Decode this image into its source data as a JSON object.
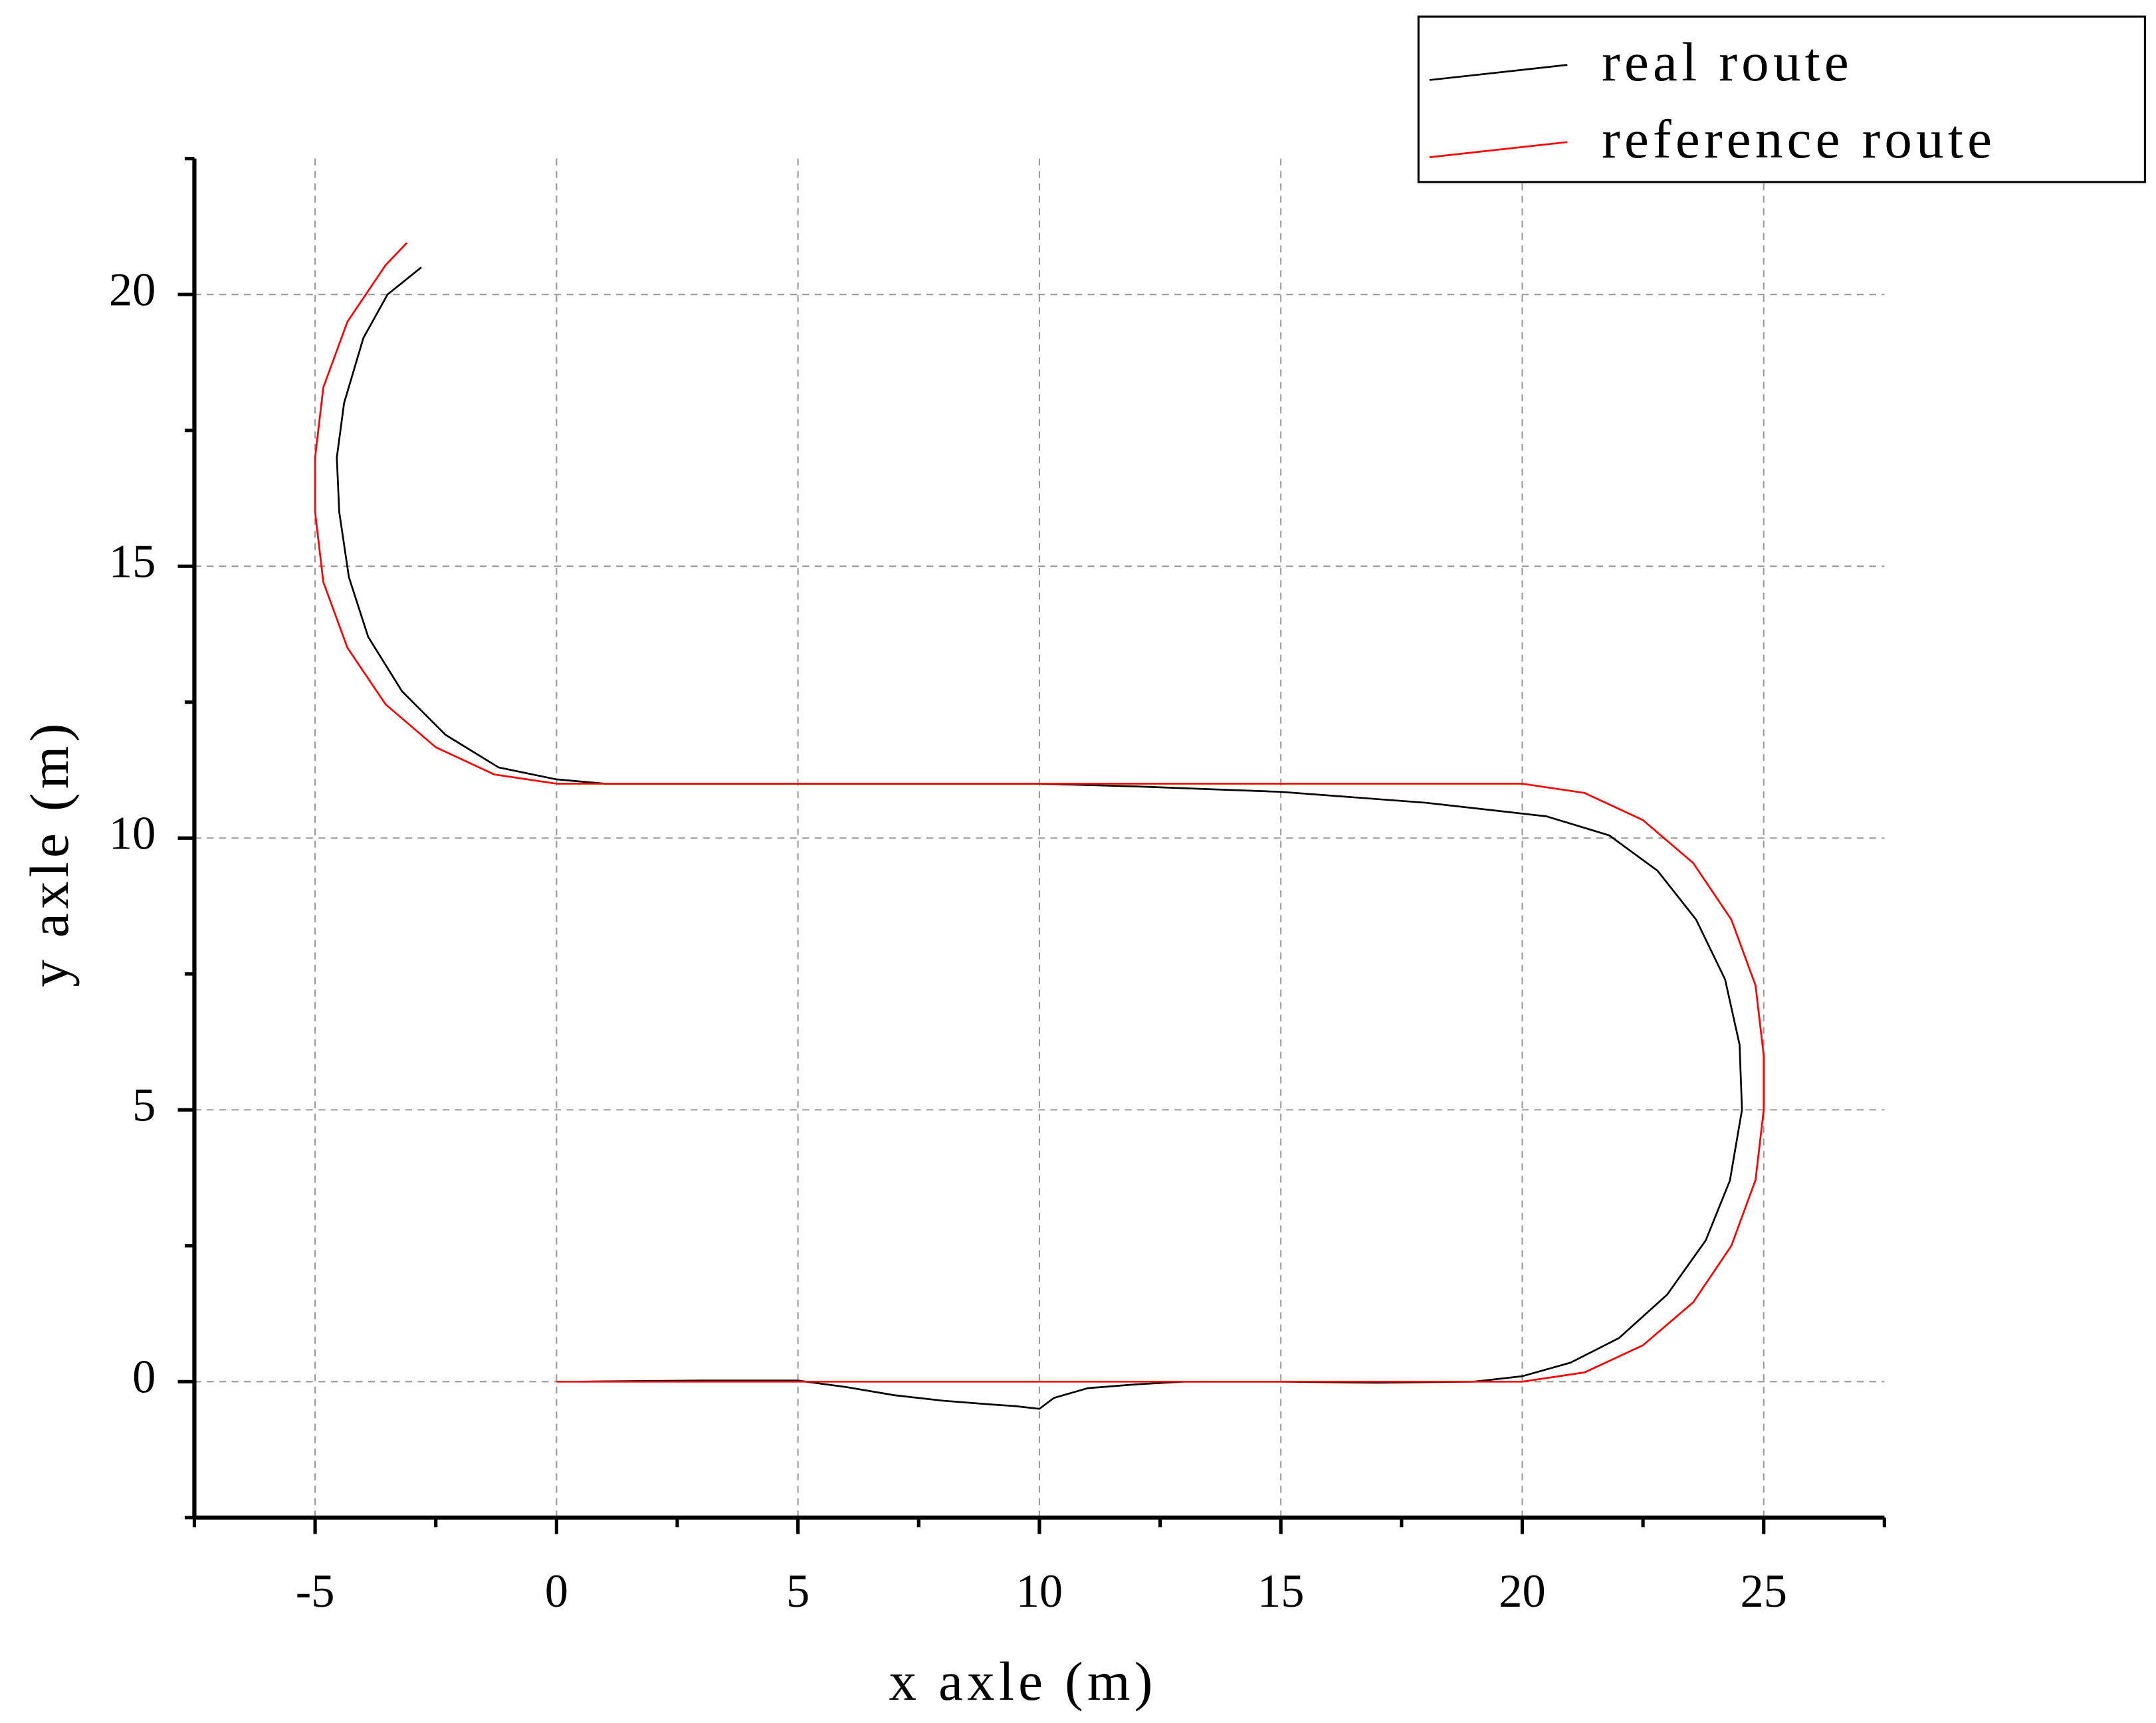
{
  "chart_data": {
    "type": "line",
    "x_label": "x axle (m)",
    "y_label": "y axle (m)",
    "xlim": [
      -7.5,
      27.5
    ],
    "ylim": [
      -2.5,
      22.5
    ],
    "xticks": [
      -5,
      0,
      5,
      10,
      15,
      20,
      25
    ],
    "yticks": [
      0,
      5,
      10,
      15,
      20
    ],
    "xminorticks": [
      -7.5,
      -2.5,
      2.5,
      7.5,
      12.5,
      17.5,
      22.5,
      27.5
    ],
    "yminorticks": [
      -2.5,
      2.5,
      7.5,
      12.5,
      17.5,
      22.5
    ],
    "grid": true,
    "legend": "upper right",
    "series": [
      {
        "name": "real route",
        "color": "#000000",
        "x": [
          0.5,
          3,
          5,
          6,
          7,
          8,
          9,
          9.5,
          10,
          10.3,
          11,
          12,
          13,
          15,
          17,
          19,
          20,
          21,
          22,
          23,
          23.8,
          24.3,
          24.55,
          24.5,
          24.2,
          23.6,
          22.8,
          21.8,
          20.5,
          20,
          18,
          15,
          12,
          10,
          5,
          1,
          0,
          -1.2,
          -2.3,
          -3.2,
          -3.9,
          -4.3,
          -4.5,
          -4.55,
          -4.4,
          -4.0,
          -3.5,
          -2.8
        ],
        "values": [
          0,
          0.02,
          0.02,
          -0.1,
          -0.25,
          -0.35,
          -0.42,
          -0.45,
          -0.5,
          -0.3,
          -0.12,
          -0.05,
          0,
          0,
          -0.02,
          0,
          0.1,
          0.35,
          0.8,
          1.6,
          2.6,
          3.7,
          5,
          6.2,
          7.4,
          8.5,
          9.4,
          10.05,
          10.4,
          10.45,
          10.65,
          10.85,
          10.95,
          11,
          11,
          11,
          11.08,
          11.3,
          11.9,
          12.7,
          13.7,
          14.8,
          16,
          17,
          18,
          19.2,
          20,
          20.5
        ]
      },
      {
        "name": "reference route",
        "color": "#ff0000",
        "x": [
          0,
          20,
          21.29,
          22.5,
          23.54,
          24.33,
          24.83,
          25,
          25,
          24.83,
          24.33,
          23.54,
          22.5,
          21.29,
          20,
          0,
          -1.29,
          -2.5,
          -3.54,
          -4.33,
          -4.83,
          -5,
          -5,
          -4.83,
          -4.33,
          -3.54,
          -3.1
        ],
        "values": [
          0,
          0,
          0.17,
          0.67,
          1.46,
          2.5,
          3.71,
          5,
          6,
          7.29,
          8.5,
          9.54,
          10.33,
          10.83,
          11,
          11,
          11.17,
          11.67,
          12.46,
          13.5,
          14.71,
          16,
          17,
          18.29,
          19.5,
          20.54,
          20.95
        ]
      }
    ]
  }
}
